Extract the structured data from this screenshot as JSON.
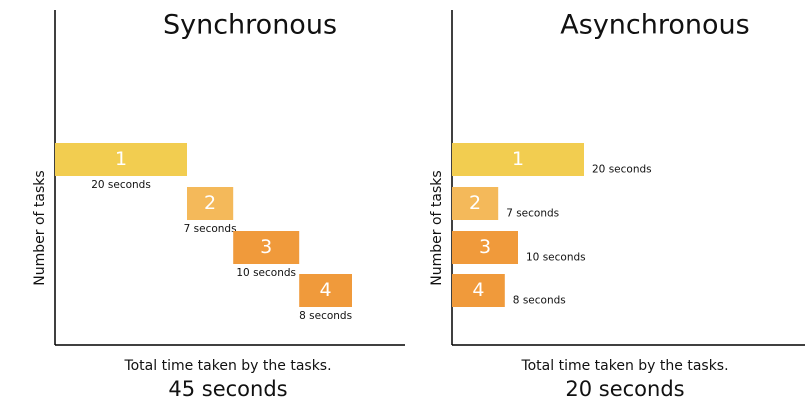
{
  "chart_data": [
    {
      "type": "sequential",
      "title": "Synchronous",
      "ylabel": "Number of tasks",
      "xlabel": "Total time taken by the tasks.",
      "total_label": "45 seconds",
      "categories": [
        "1",
        "2",
        "3",
        "4"
      ],
      "values": [
        20,
        7,
        10,
        8
      ],
      "value_labels": [
        "20 seconds",
        "7 seconds",
        "10 seconds",
        "8 seconds"
      ],
      "colors": [
        "#f2cd50",
        "#f4b95a",
        "#f09a3b",
        "#f09a3b"
      ]
    },
    {
      "type": "parallel",
      "title": "Asynchronous",
      "ylabel": "Number of tasks",
      "xlabel": "Total time taken by the tasks.",
      "total_label": "20 seconds",
      "categories": [
        "1",
        "2",
        "3",
        "4"
      ],
      "values": [
        20,
        7,
        10,
        8
      ],
      "value_labels": [
        "20 seconds",
        "7 seconds",
        "10 seconds",
        "8 seconds"
      ],
      "colors": [
        "#f2cd50",
        "#f4b95a",
        "#f09a3b",
        "#f09a3b"
      ]
    }
  ]
}
